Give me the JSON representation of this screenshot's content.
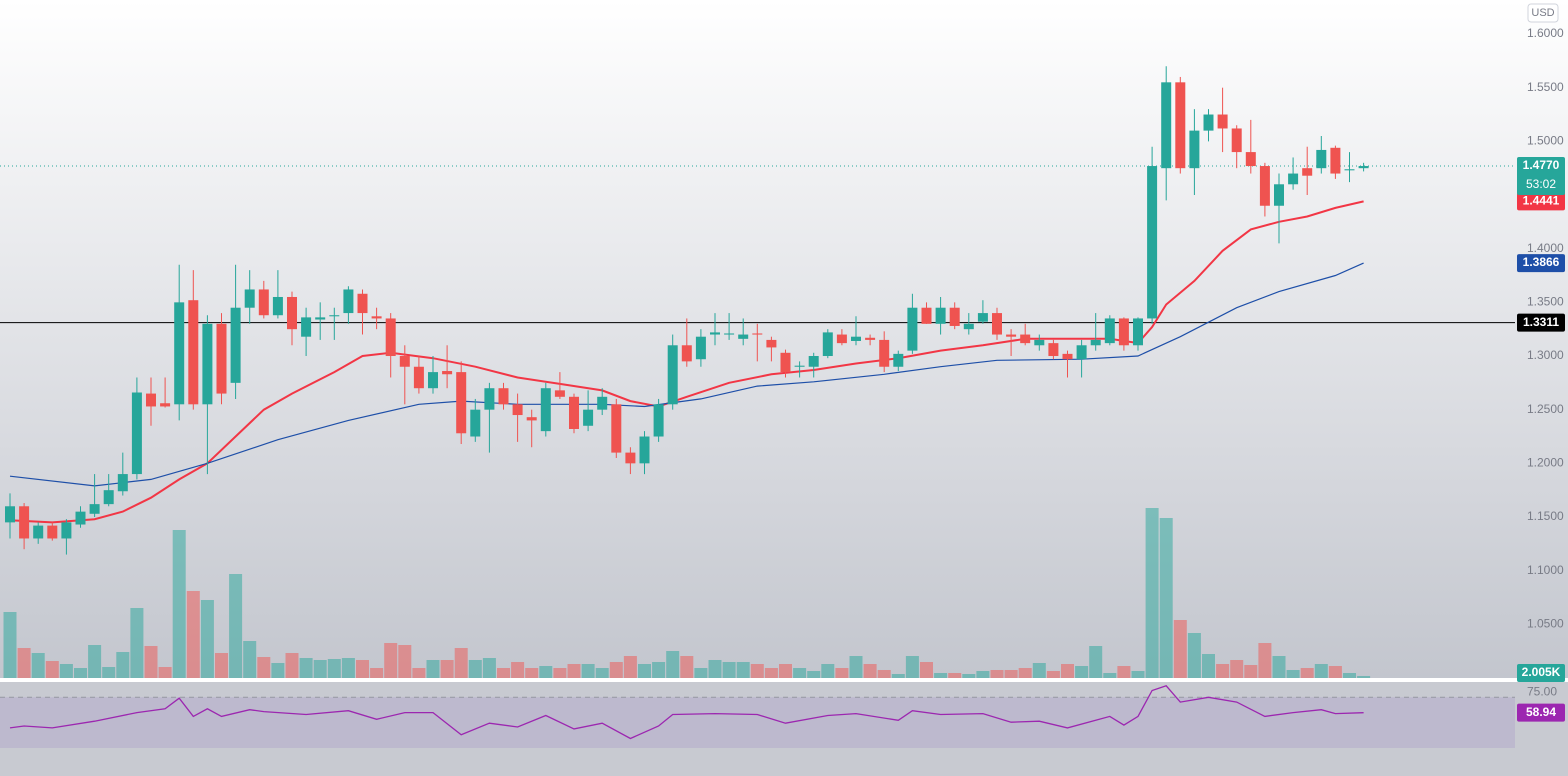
{
  "chart_data": {
    "type": "candlestick",
    "currency": "USD",
    "ylim": [
      1.0,
      1.6317
    ],
    "yticks": [
      {
        "value": 1.05,
        "label": "1.0500"
      },
      {
        "value": 1.1,
        "label": "1.1000"
      },
      {
        "value": 1.15,
        "label": "1.1500"
      },
      {
        "value": 1.2,
        "label": "1.2000"
      },
      {
        "value": 1.25,
        "label": "1.2500"
      },
      {
        "value": 1.3,
        "label": "1.3000"
      },
      {
        "value": 1.35,
        "label": "1.3500"
      },
      {
        "value": 1.4,
        "label": "1.4000"
      },
      {
        "value": 1.5,
        "label": "1.5000"
      },
      {
        "value": 1.55,
        "label": "1.5500"
      },
      {
        "value": 1.6,
        "label": "1.6000"
      }
    ],
    "up_color": "#26a69a",
    "down_color": "#ef5350",
    "candles": {
      "open": [
        1.145,
        1.16,
        1.13,
        1.142,
        1.13,
        1.143,
        1.153,
        1.162,
        1.174,
        1.19,
        1.265,
        1.256,
        1.255,
        1.352,
        1.255,
        1.33,
        1.275,
        1.345,
        1.362,
        1.338,
        1.355,
        1.318,
        1.334,
        1.337,
        1.34,
        1.358,
        1.337,
        1.335,
        1.3,
        1.29,
        1.27,
        1.286,
        1.285,
        1.225,
        1.25,
        1.27,
        1.255,
        1.243,
        1.23,
        1.268,
        1.262,
        1.235,
        1.25,
        1.255,
        1.21,
        1.2,
        1.225,
        1.255,
        1.31,
        1.297,
        1.32,
        1.32,
        1.316,
        1.321,
        1.315,
        1.303,
        1.29,
        1.29,
        1.3,
        1.32,
        1.314,
        1.317,
        1.315,
        1.29,
        1.305,
        1.345,
        1.33,
        1.345,
        1.325,
        1.332,
        1.34,
        1.32,
        1.32,
        1.31,
        1.312,
        1.302,
        1.297,
        1.31,
        1.312,
        1.335,
        1.31,
        1.335,
        1.475,
        1.555,
        1.475,
        1.51,
        1.525,
        1.512,
        1.49,
        1.477,
        1.44,
        1.46,
        1.475,
        1.475,
        1.494,
        1.473,
        1.475
      ],
      "high": [
        1.172,
        1.163,
        1.145,
        1.145,
        1.148,
        1.16,
        1.19,
        1.19,
        1.21,
        1.28,
        1.28,
        1.28,
        1.385,
        1.38,
        1.338,
        1.34,
        1.385,
        1.38,
        1.37,
        1.38,
        1.36,
        1.345,
        1.35,
        1.345,
        1.365,
        1.362,
        1.345,
        1.34,
        1.31,
        1.3,
        1.3,
        1.31,
        1.295,
        1.26,
        1.275,
        1.275,
        1.265,
        1.25,
        1.275,
        1.285,
        1.265,
        1.268,
        1.27,
        1.26,
        1.215,
        1.23,
        1.26,
        1.32,
        1.335,
        1.325,
        1.34,
        1.34,
        1.335,
        1.33,
        1.318,
        1.306,
        1.295,
        1.303,
        1.325,
        1.325,
        1.337,
        1.32,
        1.323,
        1.305,
        1.358,
        1.35,
        1.355,
        1.35,
        1.34,
        1.352,
        1.345,
        1.325,
        1.33,
        1.32,
        1.315,
        1.305,
        1.315,
        1.34,
        1.338,
        1.336,
        1.336,
        1.495,
        1.57,
        1.56,
        1.53,
        1.53,
        1.55,
        1.515,
        1.52,
        1.48,
        1.47,
        1.485,
        1.495,
        1.505,
        1.496,
        1.49,
        1.48
      ],
      "low": [
        1.13,
        1.12,
        1.125,
        1.128,
        1.115,
        1.14,
        1.15,
        1.16,
        1.17,
        1.185,
        1.235,
        1.252,
        1.24,
        1.25,
        1.19,
        1.255,
        1.26,
        1.33,
        1.335,
        1.335,
        1.31,
        1.3,
        1.315,
        1.315,
        1.33,
        1.32,
        1.325,
        1.28,
        1.255,
        1.265,
        1.265,
        1.27,
        1.218,
        1.22,
        1.21,
        1.25,
        1.22,
        1.215,
        1.225,
        1.26,
        1.228,
        1.23,
        1.245,
        1.205,
        1.19,
        1.19,
        1.22,
        1.25,
        1.29,
        1.29,
        1.31,
        1.315,
        1.31,
        1.295,
        1.295,
        1.28,
        1.28,
        1.28,
        1.298,
        1.31,
        1.31,
        1.31,
        1.285,
        1.286,
        1.302,
        1.33,
        1.32,
        1.325,
        1.32,
        1.33,
        1.315,
        1.3,
        1.31,
        1.305,
        1.297,
        1.28,
        1.28,
        1.305,
        1.31,
        1.305,
        1.305,
        1.33,
        1.445,
        1.47,
        1.45,
        1.5,
        1.49,
        1.475,
        1.47,
        1.43,
        1.405,
        1.455,
        1.45,
        1.47,
        1.465,
        1.462,
        1.472
      ],
      "close": [
        1.16,
        1.13,
        1.142,
        1.13,
        1.145,
        1.155,
        1.162,
        1.175,
        1.19,
        1.266,
        1.253,
        1.253,
        1.35,
        1.255,
        1.33,
        1.265,
        1.345,
        1.362,
        1.338,
        1.355,
        1.325,
        1.336,
        1.336,
        1.338,
        1.362,
        1.34,
        1.335,
        1.3,
        1.29,
        1.27,
        1.285,
        1.283,
        1.228,
        1.25,
        1.27,
        1.255,
        1.245,
        1.24,
        1.27,
        1.262,
        1.232,
        1.25,
        1.262,
        1.21,
        1.2,
        1.225,
        1.255,
        1.31,
        1.295,
        1.318,
        1.322,
        1.321,
        1.32,
        1.32,
        1.308,
        1.285,
        1.291,
        1.3,
        1.322,
        1.312,
        1.318,
        1.315,
        1.29,
        1.302,
        1.345,
        1.33,
        1.345,
        1.328,
        1.33,
        1.34,
        1.32,
        1.318,
        1.312,
        1.315,
        1.3,
        1.297,
        1.31,
        1.315,
        1.335,
        1.31,
        1.335,
        1.477,
        1.555,
        1.475,
        1.51,
        1.525,
        1.512,
        1.49,
        1.477,
        1.44,
        1.46,
        1.47,
        1.468,
        1.492,
        1.47,
        1.474,
        1.477
      ]
    },
    "volume": {
      "ylim": [
        0,
        240
      ],
      "values": [
        66,
        30,
        25,
        17,
        14,
        10,
        33,
        11,
        26,
        70,
        32,
        11,
        148,
        87,
        78,
        25,
        104,
        37,
        21,
        15,
        25,
        20,
        18,
        19,
        20,
        18,
        10,
        35,
        33,
        10,
        18,
        18,
        30,
        18,
        20,
        10,
        16,
        10,
        12,
        10,
        14,
        14,
        10,
        16,
        22,
        14,
        16,
        27,
        22,
        10,
        18,
        16,
        16,
        14,
        10,
        14,
        10,
        7,
        14,
        10,
        22,
        14,
        8,
        4,
        22,
        16,
        5,
        5,
        4,
        7,
        8,
        8,
        10,
        15,
        7,
        14,
        12,
        32,
        5,
        12,
        7,
        170,
        160,
        58,
        45,
        24,
        14,
        18,
        13,
        35,
        22,
        8,
        10,
        14,
        12,
        5,
        2.005
      ],
      "last_label": "2.005K"
    },
    "last_price": {
      "value": 1.477,
      "label": "1.4770"
    },
    "countdown": "53:02",
    "horizontal_line": {
      "value": 1.3311,
      "label": "1.3311",
      "color": "#000000"
    },
    "moving_averages": [
      {
        "color": "#f23645",
        "x": [
          0,
          3,
          6,
          8,
          10,
          12,
          14,
          16,
          18,
          20,
          23,
          25,
          27,
          30,
          33,
          36,
          39,
          42,
          44,
          46,
          48,
          51,
          54,
          57,
          60,
          63,
          66,
          69,
          72,
          75,
          78,
          80,
          81,
          82,
          84,
          86,
          88,
          90,
          92,
          94,
          96
        ],
        "values": [
          1.147,
          1.145,
          1.148,
          1.155,
          1.168,
          1.185,
          1.2,
          1.225,
          1.25,
          1.265,
          1.285,
          1.3,
          1.303,
          1.298,
          1.29,
          1.28,
          1.274,
          1.268,
          1.258,
          1.253,
          1.262,
          1.275,
          1.283,
          1.287,
          1.293,
          1.298,
          1.305,
          1.31,
          1.316,
          1.316,
          1.316,
          1.312,
          1.327,
          1.348,
          1.37,
          1.398,
          1.418,
          1.425,
          1.43,
          1.438,
          1.4441
        ],
        "last_label": "1.4441"
      },
      {
        "color": "#1e4fa8",
        "x": [
          0,
          6,
          10,
          14,
          19,
          24,
          29,
          32,
          36,
          42,
          45,
          49,
          53,
          57,
          62,
          66,
          70,
          76,
          80,
          83,
          87,
          90,
          94,
          96
        ],
        "values": [
          1.188,
          1.179,
          1.185,
          1.2,
          1.222,
          1.24,
          1.255,
          1.258,
          1.255,
          1.255,
          1.253,
          1.26,
          1.272,
          1.276,
          1.283,
          1.29,
          1.296,
          1.297,
          1.3,
          1.318,
          1.345,
          1.36,
          1.375,
          1.3866
        ],
        "last_label": "1.3866"
      }
    ],
    "rsi": {
      "color": "#9c27b0",
      "ylim": [
        20,
        93
      ],
      "yticks": [
        {
          "value": 75,
          "label": "75.00"
        }
      ],
      "x": [
        0,
        1,
        3,
        6,
        9,
        11,
        12,
        13,
        14,
        15,
        17,
        18,
        21,
        24,
        26,
        28,
        30,
        32,
        34,
        36,
        38,
        40,
        42,
        44,
        46,
        47,
        50,
        53,
        55,
        58,
        60,
        63,
        64,
        66,
        69,
        71,
        73,
        75,
        77,
        78,
        79,
        80,
        81,
        82,
        83,
        85,
        87,
        89,
        91,
        93,
        94,
        96
      ],
      "values": [
        43,
        45,
        43,
        50,
        59,
        63,
        74,
        55,
        63,
        55,
        62,
        60,
        57,
        61,
        52,
        59,
        59,
        36,
        48,
        44,
        56,
        42,
        48,
        32,
        45,
        57,
        58,
        57,
        48,
        56,
        58,
        51,
        61,
        57,
        58,
        49,
        50,
        43,
        51,
        55,
        46,
        55,
        82,
        87,
        70,
        75,
        70,
        55,
        59,
        62,
        58,
        58.94
      ],
      "last_label": "58.94"
    }
  }
}
